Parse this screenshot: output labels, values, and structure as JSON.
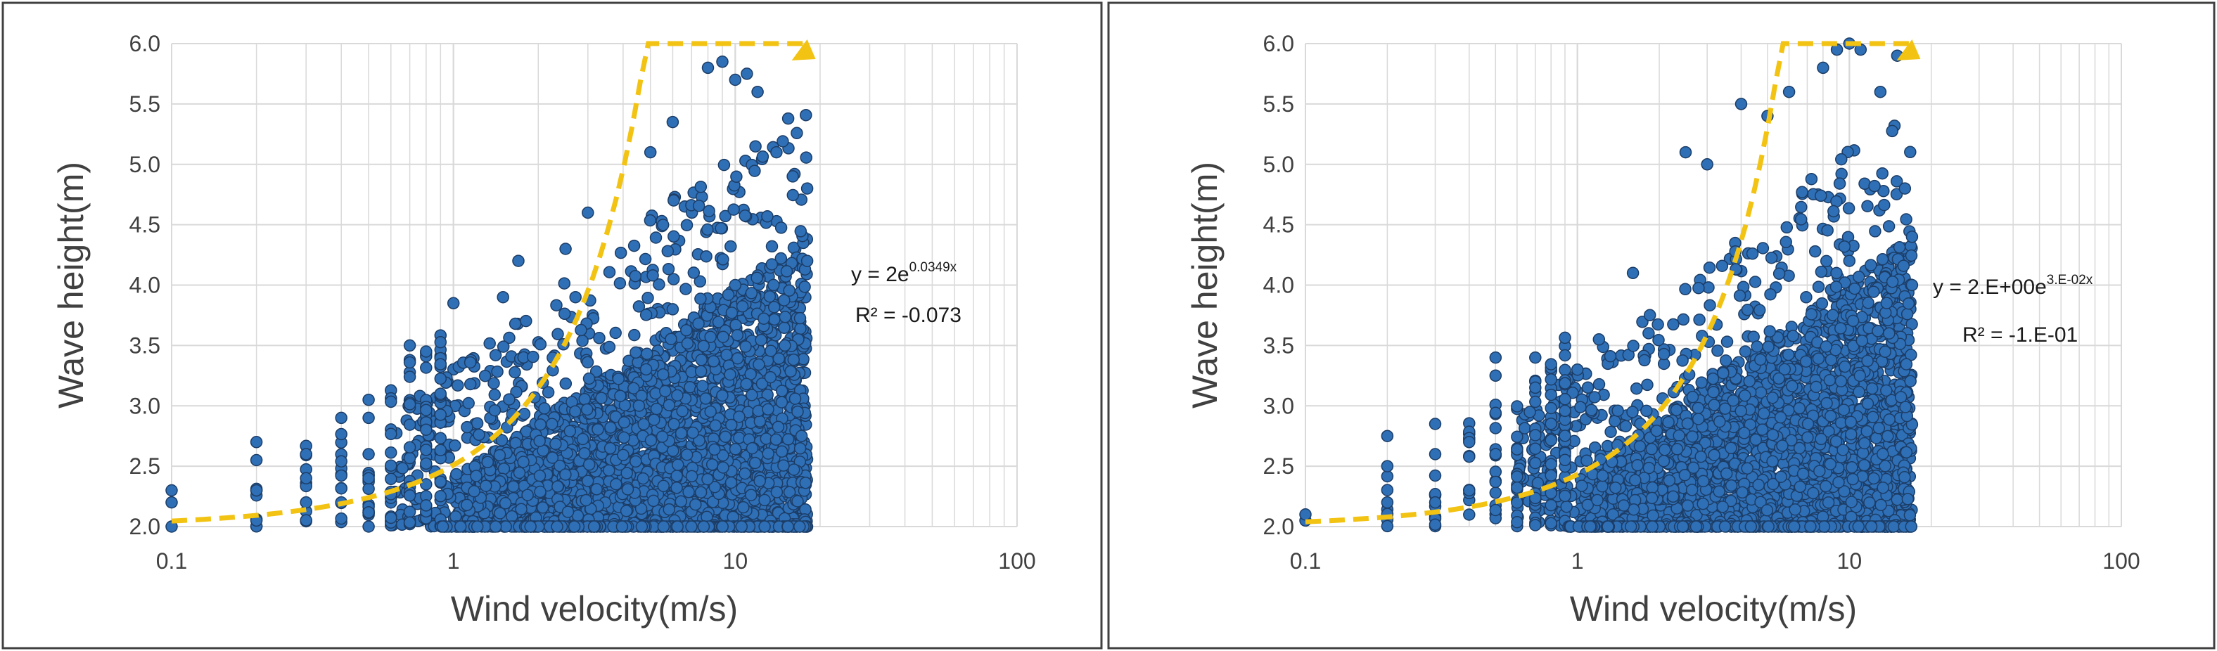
{
  "colors": {
    "point_fill": "#2f6fb6",
    "point_stroke": "#1c3d66",
    "trend": "#f2c313",
    "grid": "#d9d9d9",
    "border": "#404040",
    "text": "#404040"
  },
  "chart_data": [
    {
      "type": "scatter",
      "title": "",
      "xlabel": "Wind velocity(m/s)",
      "ylabel": "Wave height(m)",
      "x_scale": "log",
      "xlim": [
        0.1,
        100
      ],
      "ylim": [
        2.0,
        6.0
      ],
      "x_ticks": [
        "0.1",
        "1",
        "10",
        "100"
      ],
      "y_ticks": [
        "2.0",
        "2.5",
        "3.0",
        "3.5",
        "4.0",
        "4.5",
        "5.0",
        "5.5",
        "6.0"
      ],
      "grid": true,
      "point_cloud": {
        "x_range": [
          0.1,
          18
        ],
        "y_min": 2.0,
        "y_max": 5.85,
        "dense_region": "x 1–18, y 2.0–4.0",
        "samples": [
          [
            0.1,
            2.0
          ],
          [
            0.1,
            2.2
          ],
          [
            0.1,
            2.3
          ],
          [
            0.2,
            2.05
          ],
          [
            0.2,
            2.3
          ],
          [
            0.2,
            2.55
          ],
          [
            0.2,
            2.7
          ],
          [
            0.3,
            2.2
          ],
          [
            0.3,
            2.4
          ],
          [
            0.3,
            2.6
          ],
          [
            0.4,
            2.2
          ],
          [
            0.4,
            2.9
          ],
          [
            0.5,
            2.4
          ],
          [
            0.5,
            2.6
          ],
          [
            0.5,
            3.05
          ],
          [
            0.7,
            3.5
          ],
          [
            0.8,
            3.45
          ],
          [
            0.9,
            3.1
          ],
          [
            1.0,
            3.85
          ],
          [
            1.5,
            3.9
          ],
          [
            1.7,
            4.2
          ],
          [
            2.5,
            4.3
          ],
          [
            3.0,
            4.6
          ],
          [
            5.0,
            5.1
          ],
          [
            6.0,
            5.35
          ],
          [
            8.0,
            5.8
          ],
          [
            9.0,
            5.85
          ],
          [
            10.0,
            5.7
          ],
          [
            11.0,
            5.75
          ],
          [
            12.0,
            5.6
          ],
          [
            14.0,
            5.1
          ],
          [
            16.0,
            4.9
          ],
          [
            18.0,
            4.8
          ],
          [
            18.0,
            4.2
          ],
          [
            15.0,
            3.5
          ],
          [
            10.0,
            4.0
          ],
          [
            6.0,
            3.8
          ]
        ]
      },
      "trendline": {
        "type": "exponential",
        "a": 2,
        "b": 0.0349,
        "x_range": [
          0.1,
          18
        ]
      },
      "equation": {
        "prefix": "y = 2e",
        "exponent": "0.0349x",
        "r2": "R² = -0.073"
      }
    },
    {
      "type": "scatter",
      "title": "",
      "xlabel": "Wind velocity(m/s)",
      "ylabel": "Wave height(m)",
      "x_scale": "log",
      "xlim": [
        0.1,
        100
      ],
      "ylim": [
        2.0,
        6.0
      ],
      "x_ticks": [
        "0.1",
        "1",
        "10",
        "100"
      ],
      "y_ticks": [
        "2.0",
        "2.5",
        "3.0",
        "3.5",
        "4.0",
        "4.5",
        "5.0",
        "5.5",
        "6.0"
      ],
      "grid": true,
      "point_cloud": {
        "x_range": [
          0.1,
          17
        ],
        "y_min": 2.0,
        "y_max": 6.0,
        "dense_region": "x 1–17, y 2.0–4.0",
        "samples": [
          [
            0.1,
            2.05
          ],
          [
            0.1,
            2.1
          ],
          [
            0.2,
            2.2
          ],
          [
            0.2,
            2.5
          ],
          [
            0.2,
            2.75
          ],
          [
            0.3,
            2.2
          ],
          [
            0.3,
            2.6
          ],
          [
            0.3,
            2.85
          ],
          [
            0.4,
            2.3
          ],
          [
            0.4,
            2.7
          ],
          [
            0.5,
            2.6
          ],
          [
            0.5,
            3.25
          ],
          [
            0.5,
            3.4
          ],
          [
            0.7,
            3.4
          ],
          [
            1.0,
            3.3
          ],
          [
            1.2,
            3.55
          ],
          [
            1.6,
            4.1
          ],
          [
            2.5,
            5.1
          ],
          [
            3.0,
            5.0
          ],
          [
            4.0,
            5.5
          ],
          [
            5.0,
            5.4
          ],
          [
            6.0,
            5.6
          ],
          [
            8.0,
            5.8
          ],
          [
            9.0,
            5.95
          ],
          [
            10.0,
            6.0
          ],
          [
            11.0,
            5.95
          ],
          [
            13.0,
            5.6
          ],
          [
            15.0,
            5.9
          ],
          [
            16.0,
            4.8
          ],
          [
            17.0,
            4.4
          ],
          [
            17.0,
            4.0
          ],
          [
            14.0,
            3.6
          ],
          [
            10.0,
            4.2
          ]
        ]
      },
      "trendline": {
        "type": "exponential",
        "a": 2,
        "b": 0.03,
        "x_range": [
          0.1,
          17
        ]
      },
      "equation": {
        "prefix": "y = 2.E+00e",
        "exponent": "3.E-02x",
        "r2": "R² = -1.E-01"
      }
    }
  ]
}
